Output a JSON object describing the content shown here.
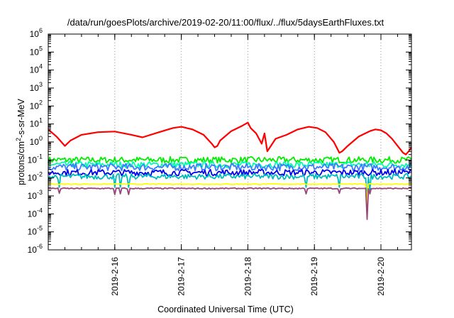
{
  "chart_data": {
    "type": "line",
    "title": "/data/run/goesPlots/archive/2019-02-20/11:00/flux/../flux/5daysEarthFluxes.txt",
    "xlabel": "Coordinated Universal Time (UTC)",
    "ylabel": {
      "pre": "protons/cm",
      "sup": "2",
      "post": "-s-sr-MeV"
    },
    "y_scale": "log",
    "ylim": [
      1e-06,
      1000000.0
    ],
    "y_ticks": [
      {
        "base": "10",
        "exp": "-6",
        "value": 1e-06
      },
      {
        "base": "10",
        "exp": "-5",
        "value": 1e-05
      },
      {
        "base": "10",
        "exp": "-4",
        "value": 0.0001
      },
      {
        "base": "10",
        "exp": "-3",
        "value": 0.001
      },
      {
        "base": "10",
        "exp": "-2",
        "value": 0.01
      },
      {
        "base": "10",
        "exp": "-1",
        "value": 0.1
      },
      {
        "base": "10",
        "exp": "0",
        "value": 1
      },
      {
        "base": "10",
        "exp": "1",
        "value": 10
      },
      {
        "base": "10",
        "exp": "2",
        "value": 100
      },
      {
        "base": "10",
        "exp": "3",
        "value": 1000
      },
      {
        "base": "10",
        "exp": "4",
        "value": 10000
      },
      {
        "base": "10",
        "exp": "5",
        "value": 100000
      },
      {
        "base": "10",
        "exp": "6",
        "value": 1000000
      }
    ],
    "xlim": [
      "2019-02-15T00:00",
      "2019-02-20T11:00"
    ],
    "x_ticks": [
      {
        "label": "2019-2-16",
        "value": "2019-02-16T00:00"
      },
      {
        "label": "2019-2-17",
        "value": "2019-02-17T00:00"
      },
      {
        "label": "2019-2-18",
        "value": "2019-02-18T00:00"
      },
      {
        "label": "2019-2-19",
        "value": "2019-02-19T00:00"
      },
      {
        "label": "2019-2-20",
        "value": "2019-02-20T00:00"
      }
    ],
    "grid": true,
    "legend": "none",
    "series": [
      {
        "color": "#ff0000",
        "points": [
          [
            "2019-02-15T00:00",
            5
          ],
          [
            "2019-02-15T03:00",
            2
          ],
          [
            "2019-02-15T06:00",
            0.6
          ],
          [
            "2019-02-15T08:00",
            1.2
          ],
          [
            "2019-02-15T12:00",
            2.5
          ],
          [
            "2019-02-15T18:00",
            3.5
          ],
          [
            "2019-02-16T00:00",
            3.8
          ],
          [
            "2019-02-16T06:00",
            2.5
          ],
          [
            "2019-02-16T10:00",
            1.8
          ],
          [
            "2019-02-16T16:00",
            3.5
          ],
          [
            "2019-02-16T21:00",
            6
          ],
          [
            "2019-02-17T00:00",
            7
          ],
          [
            "2019-02-17T04:00",
            5
          ],
          [
            "2019-02-17T08:00",
            2.5
          ],
          [
            "2019-02-17T11:00",
            0.8
          ],
          [
            "2019-02-17T12:00",
            0.5
          ],
          [
            "2019-02-17T13:00",
            0.6
          ],
          [
            "2019-02-17T14:00",
            1.2
          ],
          [
            "2019-02-17T18:00",
            4
          ],
          [
            "2019-02-17T22:00",
            8
          ],
          [
            "2019-02-18T00:00",
            12
          ],
          [
            "2019-02-18T01:00",
            6
          ],
          [
            "2019-02-18T03:00",
            3
          ],
          [
            "2019-02-18T05:00",
            0.8
          ],
          [
            "2019-02-18T06:00",
            3
          ],
          [
            "2019-02-18T07:00",
            0.3
          ],
          [
            "2019-02-18T10:00",
            1.5
          ],
          [
            "2019-02-18T14:00",
            2.5
          ],
          [
            "2019-02-18T18:00",
            5
          ],
          [
            "2019-02-18T22:00",
            7
          ],
          [
            "2019-02-19T01:00",
            6
          ],
          [
            "2019-02-19T04:00",
            3.5
          ],
          [
            "2019-02-19T07:00",
            1
          ],
          [
            "2019-02-19T08:00",
            0.5
          ],
          [
            "2019-02-19T09:00",
            0.25
          ],
          [
            "2019-02-19T10:00",
            0.3
          ],
          [
            "2019-02-19T12:00",
            0.6
          ],
          [
            "2019-02-19T16:00",
            2
          ],
          [
            "2019-02-19T20:00",
            4
          ],
          [
            "2019-02-19T22:00",
            5
          ],
          [
            "2019-02-20T00:00",
            4.5
          ],
          [
            "2019-02-20T02:00",
            3
          ],
          [
            "2019-02-20T04:00",
            1.5
          ],
          [
            "2019-02-20T06:00",
            0.6
          ],
          [
            "2019-02-20T08:00",
            0.25
          ],
          [
            "2019-02-20T09:00",
            0.2
          ],
          [
            "2019-02-20T10:00",
            0.3
          ],
          [
            "2019-02-20T11:00",
            0.5
          ]
        ]
      },
      {
        "color": "#00ee00",
        "base": 0.1,
        "spread": 0.35,
        "spikes": []
      },
      {
        "color": "#00ffaa",
        "base": 0.055,
        "spread": 0.35,
        "spikes": []
      },
      {
        "color": "#3a7bff",
        "base": 0.04,
        "spread": 0.4,
        "spikes": []
      },
      {
        "color": "#0000ee",
        "base": 0.02,
        "spread": 0.35,
        "spikes": []
      },
      {
        "color": "#00bbbb",
        "base": 0.012,
        "spread": 0.3,
        "spikes": [
          [
            "2019-02-15T04:00",
            0.003
          ],
          [
            "2019-02-16T00:00",
            0.003
          ],
          [
            "2019-02-16T02:00",
            0.003
          ],
          [
            "2019-02-16T05:00",
            0.003
          ],
          [
            "2019-02-18T21:00",
            0.003
          ],
          [
            "2019-02-19T09:00",
            0.003
          ],
          [
            "2019-02-19T19:00",
            0.0005
          ],
          [
            "2019-02-19T20:00",
            0.002
          ]
        ]
      },
      {
        "color": "#ffff00",
        "base": 0.0045,
        "spread": 0.05,
        "spikes": [
          [
            "2019-02-19T19:00",
            0.0004
          ]
        ]
      },
      {
        "color": "#994477",
        "base": 0.0026,
        "spread": 0.06,
        "spikes": [
          [
            "2019-02-15T04:00",
            0.0014
          ],
          [
            "2019-02-16T00:00",
            0.0012
          ],
          [
            "2019-02-16T02:00",
            0.0013
          ],
          [
            "2019-02-16T05:00",
            0.0012
          ],
          [
            "2019-02-18T21:00",
            0.0013
          ],
          [
            "2019-02-19T09:00",
            0.0014
          ],
          [
            "2019-02-19T19:00",
            5e-05
          ],
          [
            "2019-02-19T20:00",
            0.0013
          ]
        ]
      }
    ]
  }
}
